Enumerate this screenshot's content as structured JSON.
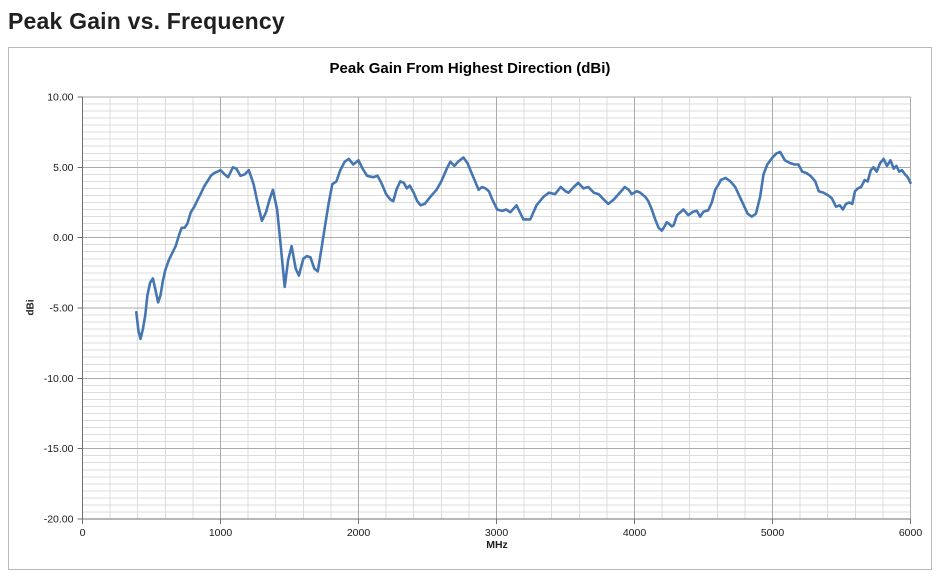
{
  "page_title": "Peak Gain vs. Frequency",
  "chart_data": {
    "type": "line",
    "title": "Peak Gain From Highest Direction (dBi)",
    "xlabel": "MHz",
    "ylabel": "dBi",
    "xlim": [
      0,
      6000
    ],
    "ylim": [
      -20,
      10
    ],
    "x_tick_values": [
      0,
      1000,
      2000,
      3000,
      4000,
      5000,
      6000
    ],
    "x_tick_labels": [
      "0",
      "1000",
      "2000",
      "3000",
      "4000",
      "5000",
      "6000"
    ],
    "y_tick_values": [
      10,
      5,
      0,
      -5,
      -10,
      -15,
      -20
    ],
    "y_tick_labels": [
      "10.00",
      "5.00",
      "0.00",
      "-5.00",
      "-10.00",
      "-15.00",
      "-20.00"
    ],
    "grid": {
      "x_minor": 200,
      "y_minor": 0.5,
      "x_major": 1000,
      "y_major": 5,
      "minor_color": "#dcdcdc",
      "major_color": "#aaaaaa"
    },
    "axis_color": "#6f6f6f",
    "tick_label_color": "#1a1a1a",
    "legend": "none",
    "series": [
      {
        "name": "Peak Gain From Highest Direction",
        "color": "#4576b1",
        "points": [
          [
            390,
            -5.3
          ],
          [
            405,
            -6.6
          ],
          [
            420,
            -7.2
          ],
          [
            438,
            -6.5
          ],
          [
            455,
            -5.5
          ],
          [
            470,
            -4.1
          ],
          [
            490,
            -3.2
          ],
          [
            510,
            -2.9
          ],
          [
            528,
            -3.7
          ],
          [
            548,
            -4.6
          ],
          [
            565,
            -4.1
          ],
          [
            582,
            -3.1
          ],
          [
            600,
            -2.3
          ],
          [
            625,
            -1.6
          ],
          [
            650,
            -1.1
          ],
          [
            675,
            -0.6
          ],
          [
            700,
            0.2
          ],
          [
            718,
            0.7
          ],
          [
            740,
            0.7
          ],
          [
            760,
            1.0
          ],
          [
            785,
            1.8
          ],
          [
            810,
            2.2
          ],
          [
            835,
            2.7
          ],
          [
            860,
            3.2
          ],
          [
            885,
            3.7
          ],
          [
            905,
            4.0
          ],
          [
            930,
            4.4
          ],
          [
            955,
            4.6
          ],
          [
            980,
            4.7
          ],
          [
            1000,
            4.8
          ],
          [
            1030,
            4.5
          ],
          [
            1055,
            4.3
          ],
          [
            1090,
            5.0
          ],
          [
            1115,
            4.9
          ],
          [
            1145,
            4.4
          ],
          [
            1175,
            4.5
          ],
          [
            1205,
            4.8
          ],
          [
            1240,
            3.8
          ],
          [
            1268,
            2.5
          ],
          [
            1300,
            1.2
          ],
          [
            1330,
            1.8
          ],
          [
            1355,
            2.7
          ],
          [
            1380,
            3.4
          ],
          [
            1410,
            2.0
          ],
          [
            1435,
            -0.4
          ],
          [
            1465,
            -3.5
          ],
          [
            1490,
            -1.6
          ],
          [
            1515,
            -0.6
          ],
          [
            1545,
            -2.2
          ],
          [
            1568,
            -2.7
          ],
          [
            1600,
            -1.5
          ],
          [
            1625,
            -1.3
          ],
          [
            1652,
            -1.4
          ],
          [
            1680,
            -2.2
          ],
          [
            1705,
            -2.4
          ],
          [
            1730,
            -0.9
          ],
          [
            1760,
            1.0
          ],
          [
            1785,
            2.5
          ],
          [
            1810,
            3.8
          ],
          [
            1840,
            4.0
          ],
          [
            1868,
            4.8
          ],
          [
            1900,
            5.4
          ],
          [
            1930,
            5.6
          ],
          [
            1962,
            5.2
          ],
          [
            2000,
            5.5
          ],
          [
            2030,
            4.9
          ],
          [
            2062,
            4.4
          ],
          [
            2105,
            4.3
          ],
          [
            2138,
            4.4
          ],
          [
            2165,
            3.9
          ],
          [
            2200,
            3.1
          ],
          [
            2232,
            2.7
          ],
          [
            2252,
            2.6
          ],
          [
            2275,
            3.4
          ],
          [
            2302,
            4.0
          ],
          [
            2328,
            3.9
          ],
          [
            2350,
            3.5
          ],
          [
            2372,
            3.7
          ],
          [
            2400,
            3.2
          ],
          [
            2425,
            2.6
          ],
          [
            2450,
            2.3
          ],
          [
            2480,
            2.4
          ],
          [
            2520,
            2.9
          ],
          [
            2565,
            3.4
          ],
          [
            2600,
            4.0
          ],
          [
            2640,
            4.9
          ],
          [
            2665,
            5.4
          ],
          [
            2695,
            5.1
          ],
          [
            2722,
            5.4
          ],
          [
            2760,
            5.7
          ],
          [
            2790,
            5.3
          ],
          [
            2815,
            4.7
          ],
          [
            2845,
            4.0
          ],
          [
            2870,
            3.4
          ],
          [
            2895,
            3.6
          ],
          [
            2920,
            3.5
          ],
          [
            2945,
            3.3
          ],
          [
            2970,
            2.7
          ],
          [
            3005,
            2.0
          ],
          [
            3040,
            1.9
          ],
          [
            3070,
            2.0
          ],
          [
            3100,
            1.8
          ],
          [
            3145,
            2.3
          ],
          [
            3195,
            1.3
          ],
          [
            3245,
            1.3
          ],
          [
            3290,
            2.3
          ],
          [
            3340,
            2.9
          ],
          [
            3380,
            3.2
          ],
          [
            3425,
            3.1
          ],
          [
            3465,
            3.6
          ],
          [
            3500,
            3.3
          ],
          [
            3522,
            3.2
          ],
          [
            3560,
            3.6
          ],
          [
            3592,
            3.9
          ],
          [
            3630,
            3.5
          ],
          [
            3665,
            3.6
          ],
          [
            3705,
            3.2
          ],
          [
            3740,
            3.1
          ],
          [
            3778,
            2.7
          ],
          [
            3810,
            2.4
          ],
          [
            3848,
            2.7
          ],
          [
            3885,
            3.1
          ],
          [
            3930,
            3.6
          ],
          [
            3958,
            3.4
          ],
          [
            3980,
            3.1
          ],
          [
            4016,
            3.3
          ],
          [
            4042,
            3.2
          ],
          [
            4078,
            2.9
          ],
          [
            4100,
            2.6
          ],
          [
            4125,
            2.0
          ],
          [
            4150,
            1.3
          ],
          [
            4175,
            0.7
          ],
          [
            4198,
            0.5
          ],
          [
            4212,
            0.7
          ],
          [
            4233,
            1.1
          ],
          [
            4248,
            1.0
          ],
          [
            4270,
            0.8
          ],
          [
            4285,
            0.9
          ],
          [
            4308,
            1.6
          ],
          [
            4355,
            2.0
          ],
          [
            4390,
            1.6
          ],
          [
            4425,
            1.85
          ],
          [
            4452,
            1.9
          ],
          [
            4475,
            1.5
          ],
          [
            4500,
            1.85
          ],
          [
            4535,
            1.95
          ],
          [
            4560,
            2.5
          ],
          [
            4585,
            3.4
          ],
          [
            4610,
            3.8
          ],
          [
            4625,
            4.1
          ],
          [
            4660,
            4.25
          ],
          [
            4695,
            4.0
          ],
          [
            4730,
            3.6
          ],
          [
            4768,
            2.8
          ],
          [
            4820,
            1.7
          ],
          [
            4850,
            1.5
          ],
          [
            4880,
            1.7
          ],
          [
            4910,
            2.9
          ],
          [
            4935,
            4.5
          ],
          [
            4962,
            5.2
          ],
          [
            5000,
            5.7
          ],
          [
            5030,
            6.0
          ],
          [
            5055,
            6.1
          ],
          [
            5090,
            5.5
          ],
          [
            5128,
            5.3
          ],
          [
            5160,
            5.2
          ],
          [
            5188,
            5.2
          ],
          [
            5215,
            4.7
          ],
          [
            5245,
            4.6
          ],
          [
            5275,
            4.4
          ],
          [
            5310,
            4.0
          ],
          [
            5335,
            3.3
          ],
          [
            5370,
            3.2
          ],
          [
            5405,
            3.0
          ],
          [
            5430,
            2.8
          ],
          [
            5460,
            2.2
          ],
          [
            5488,
            2.3
          ],
          [
            5510,
            2.0
          ],
          [
            5532,
            2.4
          ],
          [
            5555,
            2.5
          ],
          [
            5578,
            2.4
          ],
          [
            5598,
            3.3
          ],
          [
            5618,
            3.5
          ],
          [
            5642,
            3.6
          ],
          [
            5668,
            4.1
          ],
          [
            5690,
            4.0
          ],
          [
            5712,
            4.8
          ],
          [
            5732,
            5.0
          ],
          [
            5755,
            4.7
          ],
          [
            5780,
            5.3
          ],
          [
            5805,
            5.6
          ],
          [
            5830,
            5.1
          ],
          [
            5855,
            5.5
          ],
          [
            5878,
            4.9
          ],
          [
            5898,
            5.1
          ],
          [
            5918,
            4.7
          ],
          [
            5938,
            4.8
          ],
          [
            5960,
            4.5
          ],
          [
            5980,
            4.3
          ],
          [
            6000,
            3.9
          ]
        ]
      }
    ]
  }
}
